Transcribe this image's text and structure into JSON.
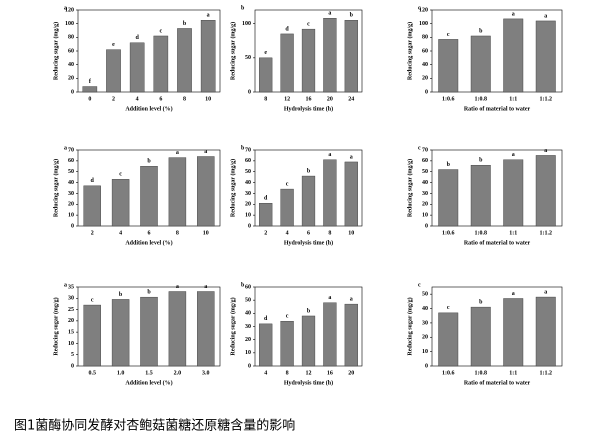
{
  "chart_data": [
    {
      "type": "bar",
      "panel": "a",
      "ylabel": "Reducing sugar (mg/g)",
      "xlabel": "Addition level (%)",
      "categories": [
        "0",
        "2",
        "4",
        "6",
        "8",
        "10"
      ],
      "values": [
        8,
        62,
        72,
        82,
        93,
        105
      ],
      "letters": [
        "f",
        "e",
        "d",
        "c",
        "b",
        "a"
      ],
      "color": "#7f7f7f",
      "ylim": [
        0,
        120
      ],
      "yticks": [
        0,
        20,
        40,
        60,
        80,
        100,
        120
      ]
    },
    {
      "type": "bar",
      "panel": "b",
      "ylabel": "Reducing sugar (mg/g)",
      "xlabel": "Hydrolysis time (h)",
      "categories": [
        "8",
        "12",
        "16",
        "20",
        "24"
      ],
      "values": [
        50,
        85,
        92,
        108,
        105
      ],
      "letters": [
        "e",
        "d",
        "c",
        "a",
        "b"
      ],
      "color": "#7f7f7f",
      "ylim": [
        0,
        120
      ],
      "yticks": [
        0,
        50,
        100
      ]
    },
    {
      "type": "bar",
      "panel": "c",
      "ylabel": "Reducing sugar (mg/g)",
      "xlabel": "Ratio of material to water",
      "categories": [
        "1:0.6",
        "1:0.8",
        "1:1",
        "1:1.2"
      ],
      "values": [
        77,
        82,
        107,
        104
      ],
      "letters": [
        "c",
        "b",
        "a",
        "a"
      ],
      "color": "#7f7f7f",
      "ylim": [
        0,
        120
      ],
      "yticks": [
        0,
        20,
        40,
        60,
        80,
        100,
        120
      ]
    },
    {
      "type": "bar",
      "panel": "a",
      "ylabel": "Reducing sugar (mg/g)",
      "xlabel": "Addition level (%)",
      "categories": [
        "2",
        "4",
        "6",
        "8",
        "10"
      ],
      "values": [
        37,
        43,
        55,
        63,
        64
      ],
      "letters": [
        "d",
        "c",
        "b",
        "a",
        "a"
      ],
      "color": "#7f7f7f",
      "ylim": [
        0,
        70
      ],
      "yticks": [
        0,
        10,
        20,
        30,
        40,
        50,
        60,
        70
      ]
    },
    {
      "type": "bar",
      "panel": "b",
      "ylabel": "Reducing sugar (mg/g)",
      "xlabel": "Hydrolysis time (h)",
      "categories": [
        "2",
        "4",
        "6",
        "8",
        "10"
      ],
      "values": [
        21,
        34,
        46,
        61,
        59
      ],
      "letters": [
        "d",
        "c",
        "b",
        "a",
        "a"
      ],
      "color": "#7f7f7f",
      "ylim": [
        0,
        70
      ],
      "yticks": [
        0,
        10,
        20,
        30,
        40,
        50,
        60,
        70
      ]
    },
    {
      "type": "bar",
      "panel": "c",
      "ylabel": "Reducing sugar (mg/g)",
      "xlabel": "Ratio of material to water",
      "categories": [
        "1:0.6",
        "1:0.8",
        "1:1",
        "1:1.2"
      ],
      "values": [
        52,
        56,
        61,
        65
      ],
      "letters": [
        "b",
        "b",
        "a",
        "a"
      ],
      "color": "#7f7f7f",
      "ylim": [
        0,
        70
      ],
      "yticks": [
        0,
        10,
        20,
        30,
        40,
        50,
        60,
        70
      ]
    },
    {
      "type": "bar",
      "panel": "a",
      "ylabel": "Reducing sugar (mg/g)",
      "xlabel": "Addition level (%)",
      "categories": [
        "0.5",
        "1.0",
        "1.5",
        "2.0",
        "3.0"
      ],
      "values": [
        27,
        29.5,
        30.5,
        33,
        33
      ],
      "letters": [
        "c",
        "b",
        "b",
        "a",
        "a"
      ],
      "color": "#7f7f7f",
      "ylim": [
        0,
        35
      ],
      "yticks": [
        0,
        5,
        10,
        15,
        20,
        25,
        30,
        35
      ]
    },
    {
      "type": "bar",
      "panel": "b",
      "ylabel": "Reducing sugar (mg/g)",
      "xlabel": "Hydrolysis time (h)",
      "categories": [
        "4",
        "8",
        "12",
        "16",
        "20"
      ],
      "values": [
        32,
        34,
        38,
        48,
        47
      ],
      "letters": [
        "d",
        "c",
        "b",
        "a",
        "a"
      ],
      "color": "#7f7f7f",
      "ylim": [
        0,
        60
      ],
      "yticks": [
        0,
        10,
        20,
        30,
        40,
        50,
        60
      ]
    },
    {
      "type": "bar",
      "panel": "c",
      "ylabel": "Reducing sugar (mg/g)",
      "xlabel": "Ratio of material to water",
      "categories": [
        "1:0.6",
        "1:0.8",
        "1:1",
        "1:1.2"
      ],
      "values": [
        37,
        41,
        47,
        48
      ],
      "letters": [
        "c",
        "b",
        "a",
        "a"
      ],
      "color": "#7f7f7f",
      "ylim": [
        0,
        55
      ],
      "yticks": [
        0,
        10,
        20,
        30,
        40,
        50
      ]
    }
  ],
  "caption": "图1菌酶协同发酵对杏鲍菇菌糖还原糖含量的影响"
}
